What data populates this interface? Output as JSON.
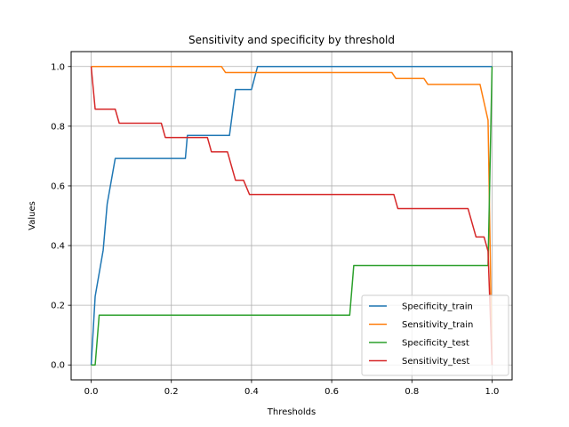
{
  "chart_data": {
    "type": "line",
    "title": "Sensitivity and specificity by threshold",
    "xlabel": "Thresholds",
    "ylabel": "Values",
    "xlim": [
      -0.05,
      1.05
    ],
    "ylim": [
      -0.05,
      1.05
    ],
    "xticks": [
      0.0,
      0.2,
      0.4,
      0.6,
      0.8,
      1.0
    ],
    "xtick_labels": [
      "0.0",
      "0.2",
      "0.4",
      "0.6",
      "0.8",
      "1.0"
    ],
    "yticks": [
      0.0,
      0.2,
      0.4,
      0.6,
      0.8,
      1.0
    ],
    "ytick_labels": [
      "0.0",
      "0.2",
      "0.4",
      "0.6",
      "0.8",
      "1.0"
    ],
    "grid": true,
    "legend_position": "lower-right",
    "series": [
      {
        "name": "Specificity_train",
        "color": "#1f77b4",
        "x": [
          0.0,
          0.01,
          0.03,
          0.04,
          0.06,
          0.235,
          0.24,
          0.345,
          0.36,
          0.4,
          0.415,
          1.0
        ],
        "y": [
          0.0,
          0.23,
          0.385,
          0.54,
          0.692,
          0.692,
          0.769,
          0.769,
          0.923,
          0.923,
          1.0,
          1.0
        ]
      },
      {
        "name": "Sensitivity_train",
        "color": "#ff7f0e",
        "x": [
          0.0,
          0.325,
          0.335,
          0.75,
          0.76,
          0.83,
          0.84,
          0.97,
          0.99,
          1.0
        ],
        "y": [
          1.0,
          1.0,
          0.98,
          0.98,
          0.96,
          0.96,
          0.94,
          0.94,
          0.82,
          0.0
        ]
      },
      {
        "name": "Specificity_test",
        "color": "#2ca02c",
        "x": [
          0.0,
          0.01,
          0.02,
          0.645,
          0.655,
          0.99,
          1.0
        ],
        "y": [
          0.0,
          0.0,
          0.167,
          0.167,
          0.333,
          0.333,
          1.0
        ]
      },
      {
        "name": "Sensitivity_test",
        "color": "#d62728",
        "x": [
          0.0,
          0.01,
          0.06,
          0.07,
          0.175,
          0.185,
          0.29,
          0.3,
          0.34,
          0.36,
          0.38,
          0.395,
          0.755,
          0.765,
          0.94,
          0.96,
          0.98,
          0.99,
          1.0
        ],
        "y": [
          1.0,
          0.857,
          0.857,
          0.81,
          0.81,
          0.762,
          0.762,
          0.714,
          0.714,
          0.619,
          0.619,
          0.571,
          0.571,
          0.524,
          0.524,
          0.429,
          0.429,
          0.381,
          0.0
        ]
      }
    ]
  }
}
